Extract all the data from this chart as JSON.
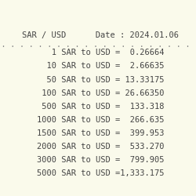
{
  "background_color": "#fafaeb",
  "header_text": "SAR / USD      Date : 2024.01.06",
  "rows": [
    {
      "label": "   1 SAR to USD =",
      "value": "  0.26664"
    },
    {
      "label": "  10 SAR to USD =",
      "value": "  2.66635"
    },
    {
      "label": "  50 SAR to USD =",
      "value": " 13.33175"
    },
    {
      "label": " 100 SAR to USD =",
      "value": " 26.66350"
    },
    {
      "label": " 500 SAR to USD =",
      "value": "  133.318"
    },
    {
      "label": "1000 SAR to USD =",
      "value": "  266.635"
    },
    {
      "label": "1500 SAR to USD =",
      "value": "  399.953"
    },
    {
      "label": "2000 SAR to USD =",
      "value": "  533.270"
    },
    {
      "label": "3000 SAR to USD =",
      "value": "  799.905"
    },
    {
      "label": "5000 SAR to USD =",
      "value": "1,333.175"
    }
  ],
  "separator": ". . . . . . . . . . . . . . . . . . . . . . . . . .",
  "font_family": "monospace",
  "header_fontsize": 7.5,
  "row_fontsize": 7.5,
  "sep_fontsize": 7.0,
  "text_color": "#444444",
  "separator_color": "#888888"
}
